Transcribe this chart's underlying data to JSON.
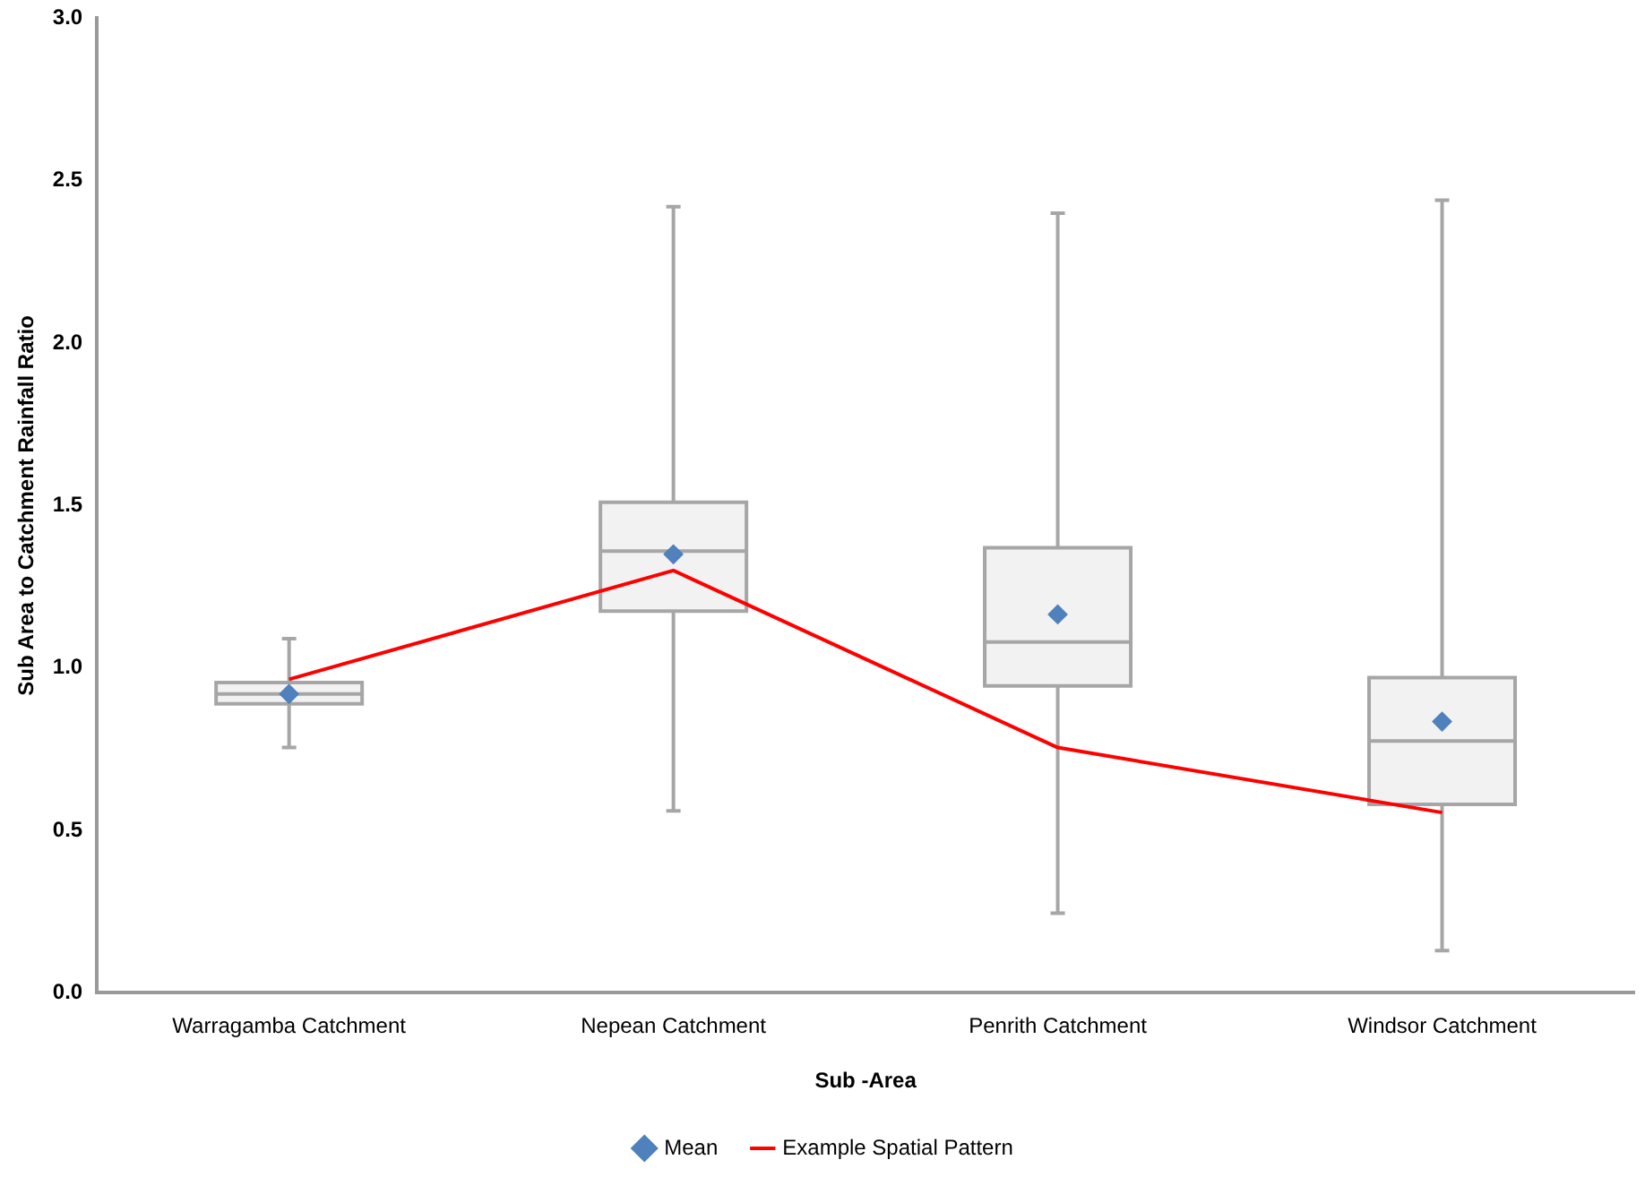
{
  "chart_data": {
    "type": "box",
    "xlabel": "Sub -Area",
    "ylabel": "Sub Area to Catchment Rainfall Ratio",
    "categories": [
      "Warragamba Catchment",
      "Nepean Catchment",
      "Penrith Catchment",
      "Windsor Catchment"
    ],
    "boxes": [
      {
        "low": 0.755,
        "q1": 0.89,
        "median": 0.92,
        "q3": 0.955,
        "high": 1.09
      },
      {
        "low": 0.56,
        "q1": 1.175,
        "median": 1.36,
        "q3": 1.51,
        "high": 2.42
      },
      {
        "low": 0.245,
        "q1": 0.945,
        "median": 1.08,
        "q3": 1.37,
        "high": 2.4
      },
      {
        "low": 0.13,
        "q1": 0.58,
        "median": 0.775,
        "q3": 0.97,
        "high": 2.44
      }
    ],
    "series": [
      {
        "name": "Mean",
        "type": "scatter",
        "color": "#4f81bd",
        "marker": "diamond",
        "x": [
          "Warragamba Catchment",
          "Nepean Catchment",
          "Penrith Catchment",
          "Windsor Catchment"
        ],
        "values": [
          0.92,
          1.35,
          1.165,
          0.835
        ]
      },
      {
        "name": "Example Spatial Pattern",
        "type": "line",
        "color": "#ff0000",
        "marker": "none",
        "values": [
          0.965,
          1.3,
          0.755,
          0.555
        ]
      }
    ],
    "ylim": [
      0,
      3
    ],
    "yticks": [
      {
        "value": 0,
        "label": "0.0"
      },
      0.5,
      {
        "value": 1,
        "label": "1.0"
      },
      1.5,
      {
        "value": 2,
        "label": "2.0"
      },
      2.5,
      {
        "value": 3,
        "label": "3.0"
      }
    ],
    "grid": false,
    "legend": "bottom"
  }
}
